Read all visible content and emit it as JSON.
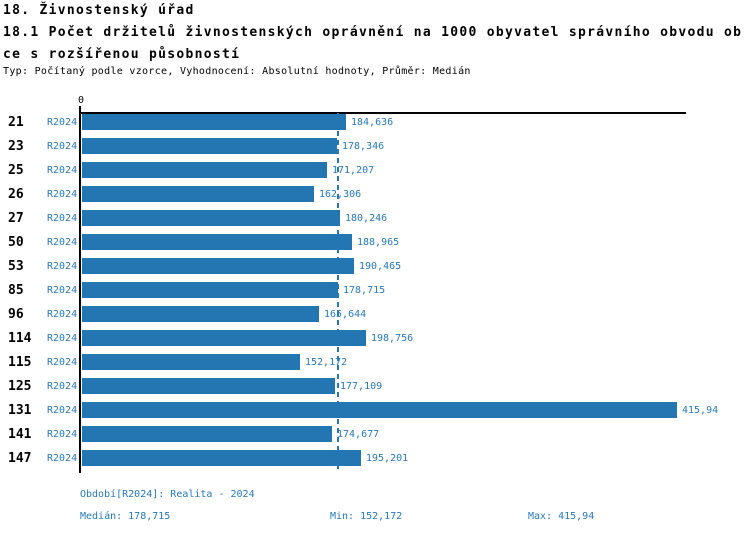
{
  "header": {
    "title": "18. Živnostenský úřad",
    "subtitle_line1": "18.1 Počet držitelů živnostenských oprávnění na 1000 obyvatel správního obvodu ob",
    "subtitle_line2": "ce s rozšířenou působností",
    "meta": "Typ: Počítaný podle vzorce, Vyhodnocení: Absolutní hodnoty, Průměr: Medián"
  },
  "chart": {
    "axis_zero_label": "0",
    "bar_color": "#2376b2",
    "text_blue": "#2878b8",
    "median_value": 178.715,
    "rows": [
      {
        "code": "21",
        "period": "R2024",
        "value": 184.636,
        "label": "184,636"
      },
      {
        "code": "23",
        "period": "R2024",
        "value": 178.346,
        "label": "178,346"
      },
      {
        "code": "25",
        "period": "R2024",
        "value": 171.207,
        "label": "171,207"
      },
      {
        "code": "26",
        "period": "R2024",
        "value": 162.306,
        "label": "162,306"
      },
      {
        "code": "27",
        "period": "R2024",
        "value": 180.246,
        "label": "180,246"
      },
      {
        "code": "50",
        "period": "R2024",
        "value": 188.965,
        "label": "188,965"
      },
      {
        "code": "53",
        "period": "R2024",
        "value": 190.465,
        "label": "190,465"
      },
      {
        "code": "85",
        "period": "R2024",
        "value": 178.715,
        "label": "178,715"
      },
      {
        "code": "96",
        "period": "R2024",
        "value": 165.644,
        "label": "165,644"
      },
      {
        "code": "114",
        "period": "R2024",
        "value": 198.756,
        "label": "198,756"
      },
      {
        "code": "115",
        "period": "R2024",
        "value": 152.172,
        "label": "152,172"
      },
      {
        "code": "125",
        "period": "R2024",
        "value": 177.109,
        "label": "177,109"
      },
      {
        "code": "131",
        "period": "R2024",
        "value": 415.94,
        "label": "415,94"
      },
      {
        "code": "141",
        "period": "R2024",
        "value": 174.677,
        "label": "174,677"
      },
      {
        "code": "147",
        "period": "R2024",
        "value": 195.201,
        "label": "195,201"
      }
    ]
  },
  "footer": {
    "period_label": "Období[R2024]: Realita - 2024",
    "median": "Medián: 178,715",
    "min": "Min: 152,172",
    "max": "Max: 415,94"
  },
  "chart_data": {
    "type": "bar",
    "orientation": "horizontal",
    "title": "18. Živnostenský úřad",
    "subtitle": "18.1 Počet držitelů živnostenských oprávnění na 1000 obyvatel správního obvodu obce s rozšířenou působností",
    "meta": "Typ: Počítaný podle vzorce, Vyhodnocení: Absolutní hodnoty, Průměr: Medián",
    "categories": [
      "21",
      "23",
      "25",
      "26",
      "27",
      "50",
      "53",
      "85",
      "96",
      "114",
      "115",
      "125",
      "131",
      "141",
      "147"
    ],
    "series": [
      {
        "name": "R2024 — Realita - 2024",
        "values": [
          184.636,
          178.346,
          171.207,
          162.306,
          180.246,
          188.965,
          190.465,
          178.715,
          165.644,
          198.756,
          152.172,
          177.109,
          415.94,
          174.677,
          195.201
        ]
      }
    ],
    "value_labels": [
      "184,636",
      "178,346",
      "171,207",
      "162,306",
      "180,246",
      "188,965",
      "190,465",
      "178,715",
      "165,644",
      "198,756",
      "152,172",
      "177,109",
      "415,94",
      "174,677",
      "195,201"
    ],
    "xlabel": "",
    "ylabel": "",
    "xlim": [
      0,
      423
    ],
    "grid": false,
    "legend_position": "bottom",
    "median_line": 178.715,
    "stats": {
      "median": 178.715,
      "min": 152.172,
      "max": 415.94
    }
  }
}
